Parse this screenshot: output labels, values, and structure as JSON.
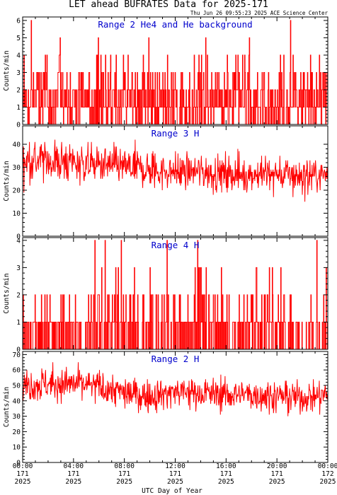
{
  "title": "LET ahead BUFRATES Data for 2025-171",
  "timestamp": "Thu Jun 26 09:55:23 2025 ACE Science Center",
  "xlabel": "UTC Day of Year",
  "series_color": "#ff0000",
  "label_color": "#0000cc",
  "xticks": [
    {
      "time": "00:00",
      "doy": "171",
      "year": "2025",
      "hour": 0
    },
    {
      "time": "04:00",
      "doy": "171",
      "year": "2025",
      "hour": 4
    },
    {
      "time": "08:00",
      "doy": "171",
      "year": "2025",
      "hour": 8
    },
    {
      "time": "12:00",
      "doy": "171",
      "year": "2025",
      "hour": 12
    },
    {
      "time": "16:00",
      "doy": "171",
      "year": "2025",
      "hour": 16
    },
    {
      "time": "20:00",
      "doy": "171",
      "year": "2025",
      "hour": 20
    },
    {
      "time": "00:00",
      "doy": "172",
      "year": "2025",
      "hour": 24
    }
  ],
  "chart_data": [
    {
      "type": "line",
      "label": "Range 2 He4 and He background",
      "ylabel": "Counts/min",
      "xlim": [
        0,
        24
      ],
      "ylim": [
        0,
        6.2
      ],
      "yticks": [
        0,
        1,
        2,
        3,
        4,
        5,
        6
      ],
      "x_unit": "hours UTC",
      "x": [
        0,
        2,
        4,
        6,
        8,
        10,
        12,
        14,
        16,
        18,
        20,
        22,
        24
      ],
      "values": [
        1.4,
        1.5,
        1.5,
        1.5,
        1.4,
        1.5,
        1.4,
        1.5,
        1.4,
        1.5,
        1.4,
        1.5,
        1.5
      ],
      "min": 0,
      "max": 6
    },
    {
      "type": "line",
      "label": "Range 3 H",
      "ylabel": "Counts/min",
      "xlim": [
        0,
        24
      ],
      "ylim": [
        0,
        48
      ],
      "yticks": [
        0,
        10,
        20,
        30,
        40
      ],
      "x_unit": "hours UTC",
      "x": [
        0,
        2,
        4,
        6,
        8,
        10,
        12,
        14,
        16,
        18,
        20,
        22,
        24
      ],
      "values": [
        33,
        33,
        32,
        31,
        30,
        29,
        28,
        28,
        27,
        27,
        27,
        26,
        27
      ],
      "min": 11,
      "max": 47
    },
    {
      "type": "line",
      "label": "Range 4 H",
      "ylabel": "Counts/min",
      "xlim": [
        0,
        24
      ],
      "ylim": [
        0,
        4.1
      ],
      "yticks": [
        0,
        1,
        2,
        3,
        4
      ],
      "x_unit": "hours UTC",
      "x": [
        0,
        2,
        4,
        6,
        8,
        10,
        12,
        14,
        16,
        18,
        20,
        22,
        24
      ],
      "values": [
        0.7,
        0.7,
        0.7,
        0.7,
        0.7,
        0.7,
        0.7,
        0.7,
        0.7,
        0.7,
        0.7,
        0.7,
        0.7
      ],
      "min": 0,
      "max": 4
    },
    {
      "type": "line",
      "label": "Range 2 H",
      "ylabel": "Counts/min",
      "xlim": [
        0,
        24
      ],
      "ylim": [
        0,
        72
      ],
      "yticks": [
        0,
        10,
        20,
        30,
        40,
        50,
        60,
        70
      ],
      "x_unit": "hours UTC",
      "x": [
        0,
        2,
        4,
        6,
        8,
        10,
        12,
        14,
        16,
        18,
        20,
        22,
        24
      ],
      "values": [
        50,
        51,
        51,
        49,
        45,
        43,
        46,
        45,
        44,
        44,
        43,
        42,
        44
      ],
      "min": 24,
      "max": 68
    }
  ]
}
